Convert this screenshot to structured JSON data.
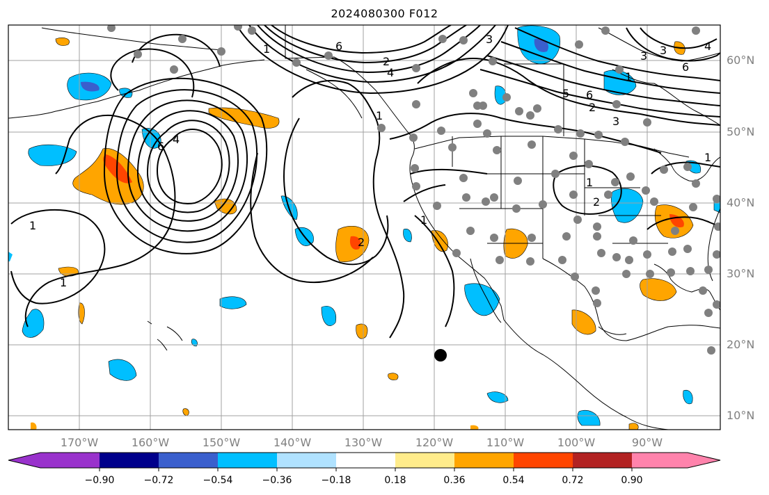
{
  "title": "2024080300 F012",
  "lat_labels": [
    "60°N",
    "50°N",
    "40°N",
    "30°N",
    "20°N",
    "10°N"
  ],
  "lon_labels": [
    "170°W",
    "160°W",
    "150°W",
    "140°W",
    "130°W",
    "120°W",
    "110°W",
    "100°W",
    "90°W"
  ],
  "colorbar": {
    "ticks": [
      "−0.90",
      "−0.72",
      "−0.54",
      "−0.36",
      "−0.18",
      "0.18",
      "0.36",
      "0.54",
      "0.72",
      "0.90"
    ],
    "colors": [
      "#9932cc",
      "#00008b",
      "#3a5fcd",
      "#00bfff",
      "#b0e2ff",
      "#ffffff",
      "#ffec8b",
      "#ffa500",
      "#ff4500",
      "#b22222",
      "#ff83ac"
    ]
  },
  "contour_labels": [
    "1",
    "1",
    "1",
    "1",
    "1",
    "1",
    "1",
    "1",
    "2",
    "2",
    "2",
    "2",
    "3",
    "3",
    "3",
    "3",
    "4",
    "4",
    "4",
    "5",
    "6",
    "6",
    "6",
    "6"
  ],
  "colors": {
    "grid": "#a0a0a0",
    "label": "#808080",
    "coast": "#000000",
    "station": "#808080"
  }
}
